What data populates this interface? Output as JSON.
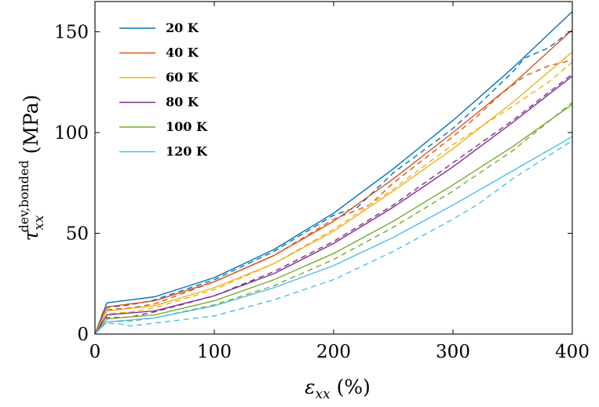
{
  "chart_data": {
    "type": "line",
    "xlabel": "ε_xx (%)",
    "xlabel_parts": {
      "main": "ε",
      "sub": "xx",
      "unit": "(%)"
    },
    "ylabel": "τ_xx^dev,bonded (MPa)",
    "ylabel_parts": {
      "main": "τ",
      "sub": "xx",
      "sup": "dev,bonded",
      "unit": "(MPa)"
    },
    "xlim": [
      0,
      400
    ],
    "ylim": [
      0,
      165
    ],
    "xticks": [
      0,
      100,
      200,
      300,
      400
    ],
    "yticks": [
      0,
      50,
      100,
      150
    ],
    "grid": false,
    "legend_position": "top-left",
    "series": [
      {
        "name": "20 K",
        "color": "#0072BD",
        "solid": [
          [
            0,
            0
          ],
          [
            10,
            15.5
          ],
          [
            50,
            18.5
          ],
          [
            100,
            28
          ],
          [
            150,
            42
          ],
          [
            200,
            60
          ],
          [
            250,
            82
          ],
          [
            300,
            106
          ],
          [
            350,
            132
          ],
          [
            400,
            160
          ]
        ],
        "dashed": [
          [
            0,
            0
          ],
          [
            8,
            13
          ],
          [
            30,
            14.5
          ],
          [
            50,
            17
          ],
          [
            100,
            27
          ],
          [
            150,
            41
          ],
          [
            200,
            59
          ],
          [
            220,
            63
          ],
          [
            250,
            80
          ],
          [
            300,
            102
          ],
          [
            320,
            113
          ],
          [
            350,
            130
          ],
          [
            360,
            137
          ],
          [
            380,
            142
          ],
          [
            400,
            151
          ]
        ]
      },
      {
        "name": "40 K",
        "color": "#D95319",
        "solid": [
          [
            0,
            0
          ],
          [
            10,
            13.5
          ],
          [
            50,
            16.5
          ],
          [
            100,
            26
          ],
          [
            150,
            39
          ],
          [
            200,
            56
          ],
          [
            250,
            77
          ],
          [
            300,
            100
          ],
          [
            350,
            124
          ],
          [
            400,
            151
          ]
        ],
        "dashed": [
          [
            0,
            0
          ],
          [
            8,
            12
          ],
          [
            30,
            13
          ],
          [
            50,
            15
          ],
          [
            100,
            26
          ],
          [
            150,
            39
          ],
          [
            200,
            57
          ],
          [
            230,
            64
          ],
          [
            250,
            75
          ],
          [
            300,
            98
          ],
          [
            320,
            108
          ],
          [
            340,
            119
          ],
          [
            360,
            128
          ],
          [
            380,
            133
          ],
          [
            400,
            136
          ]
        ]
      },
      {
        "name": "60 K",
        "color": "#EDB120",
        "solid": [
          [
            0,
            0
          ],
          [
            10,
            11.5
          ],
          [
            50,
            14
          ],
          [
            100,
            23
          ],
          [
            150,
            35
          ],
          [
            200,
            51
          ],
          [
            250,
            71
          ],
          [
            300,
            92
          ],
          [
            350,
            115
          ],
          [
            400,
            140
          ]
        ],
        "dashed": [
          [
            0,
            0
          ],
          [
            8,
            10
          ],
          [
            30,
            11
          ],
          [
            50,
            13
          ],
          [
            100,
            22
          ],
          [
            150,
            35
          ],
          [
            200,
            52
          ],
          [
            250,
            72
          ],
          [
            300,
            94
          ],
          [
            350,
            113
          ],
          [
            380,
            125
          ],
          [
            400,
            135
          ]
        ]
      },
      {
        "name": "80 K",
        "color": "#7E2F8E",
        "solid": [
          [
            0,
            0
          ],
          [
            10,
            9.5
          ],
          [
            50,
            11.5
          ],
          [
            100,
            19
          ],
          [
            150,
            30
          ],
          [
            200,
            45
          ],
          [
            250,
            63
          ],
          [
            300,
            83
          ],
          [
            350,
            105
          ],
          [
            400,
            128
          ]
        ],
        "dashed": [
          [
            0,
            0
          ],
          [
            8,
            8
          ],
          [
            30,
            8.5
          ],
          [
            50,
            11
          ],
          [
            100,
            19
          ],
          [
            150,
            31
          ],
          [
            200,
            46
          ],
          [
            250,
            64
          ],
          [
            300,
            85
          ],
          [
            350,
            106
          ],
          [
            400,
            129
          ]
        ]
      },
      {
        "name": "100 K",
        "color": "#77AC30",
        "solid": [
          [
            0,
            0
          ],
          [
            10,
            7.5
          ],
          [
            50,
            9.5
          ],
          [
            100,
            16.5
          ],
          [
            150,
            27
          ],
          [
            200,
            40
          ],
          [
            250,
            56
          ],
          [
            300,
            74
          ],
          [
            350,
            93
          ],
          [
            400,
            114
          ]
        ],
        "dashed": [
          [
            0,
            0
          ],
          [
            8,
            6
          ],
          [
            30,
            6.5
          ],
          [
            50,
            8
          ],
          [
            100,
            14.5
          ],
          [
            150,
            24
          ],
          [
            200,
            37
          ],
          [
            250,
            53
          ],
          [
            300,
            71
          ],
          [
            350,
            91
          ],
          [
            400,
            115
          ]
        ]
      },
      {
        "name": "120 K",
        "color": "#4DBEEE",
        "solid": [
          [
            0,
            0
          ],
          [
            10,
            6
          ],
          [
            50,
            8
          ],
          [
            100,
            14
          ],
          [
            150,
            23
          ],
          [
            200,
            34
          ],
          [
            250,
            48
          ],
          [
            300,
            64
          ],
          [
            350,
            81
          ],
          [
            400,
            98
          ]
        ],
        "dashed": [
          [
            0,
            0
          ],
          [
            8,
            5.5
          ],
          [
            20,
            5
          ],
          [
            30,
            4
          ],
          [
            50,
            5.5
          ],
          [
            100,
            9
          ],
          [
            150,
            17
          ],
          [
            200,
            27
          ],
          [
            250,
            41
          ],
          [
            300,
            57
          ],
          [
            320,
            64
          ],
          [
            350,
            77
          ],
          [
            400,
            96
          ]
        ]
      }
    ]
  }
}
